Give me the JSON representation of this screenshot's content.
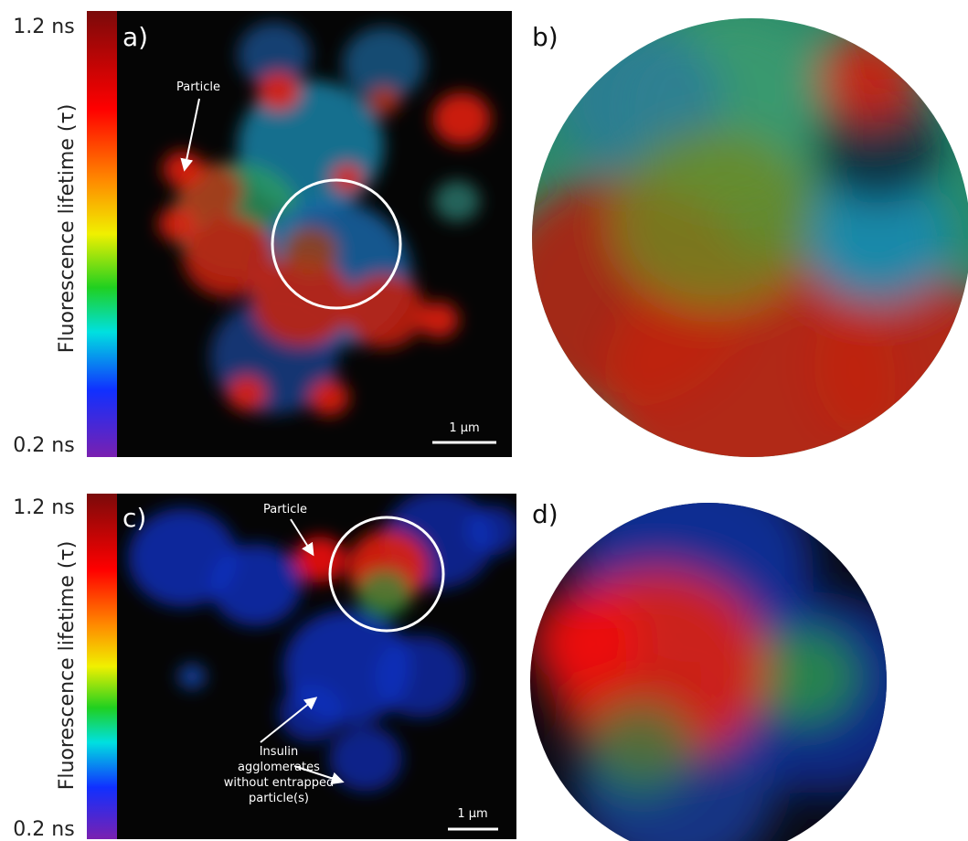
{
  "colorbar": {
    "max_label": "1.2 ns",
    "min_label": "0.2 ns",
    "axis_label": "Fluorescence lifetime (τ)"
  },
  "panels": [
    {
      "label": "a)",
      "annotation": "Particle",
      "scale_bar": "1 µm"
    },
    {
      "label": "b)"
    },
    {
      "label": "c)",
      "annotation": "Particle",
      "note_lines": [
        "Insulin",
        "agglomerates",
        "without entrapped",
        "particle(s)"
      ],
      "scale_bar": "1 µm"
    },
    {
      "label": "d)"
    }
  ]
}
